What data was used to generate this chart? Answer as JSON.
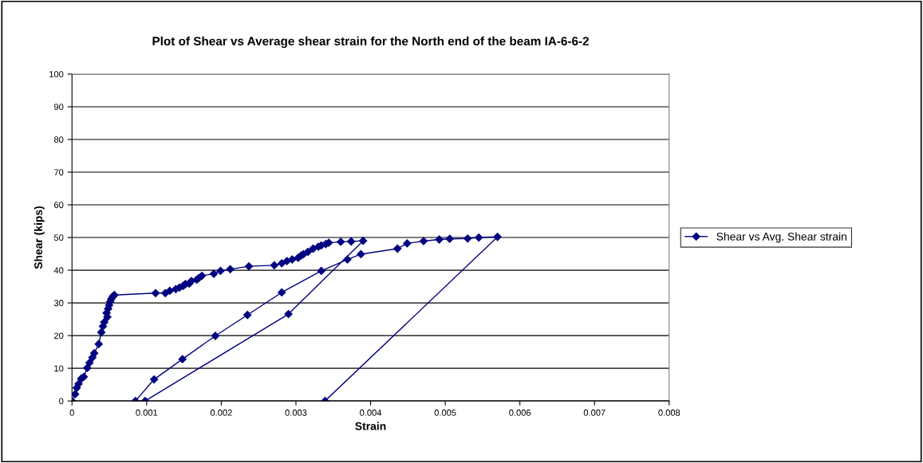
{
  "chart_data": {
    "type": "line",
    "title": "Plot of Shear vs Average shear strain for the North end of the beam IA-6-6-2",
    "xlabel": "Strain",
    "ylabel": "Shear (kips)",
    "xlim": [
      0,
      0.008
    ],
    "xticks": [
      0,
      0.001,
      0.002,
      0.003,
      0.004,
      0.005,
      0.006,
      0.007,
      0.008
    ],
    "ylim": [
      0,
      100
    ],
    "yticks": [
      0,
      10,
      20,
      30,
      40,
      50,
      60,
      70,
      80,
      90,
      100
    ],
    "grid": "y",
    "legend": "right",
    "marker": "diamond",
    "line_style": "solid",
    "series": [
      {
        "name": "Shear vs Avg. Shear strain",
        "color": "#000080",
        "x": [
          0,
          4.2e-05,
          6.3e-05,
          8.8e-05,
          0.000123,
          0.000158,
          0.000204,
          0.000235,
          0.000274,
          0.000298,
          0.000358,
          0.000393,
          0.000414,
          0.000432,
          0.000474,
          0.000463,
          0.000484,
          0.000498,
          0.000512,
          0.000526,
          0.000547,
          0.000568,
          0.00112,
          0.00125,
          0.00131,
          0.00139,
          0.00144,
          0.00149,
          0.00152,
          0.00157,
          0.0016,
          0.00167,
          0.0017,
          0.00174,
          0.0019,
          0.00199,
          0.00212,
          0.00237,
          0.00271,
          0.00281,
          0.00288,
          0.00295,
          0.00303,
          0.00307,
          0.0031,
          0.00316,
          0.00323,
          0.0033,
          0.00334,
          0.0034,
          0.00344,
          0.0036,
          0.00374,
          0.0039,
          0.0029,
          0.00098,
          0.00085,
          0.0011,
          0.00148,
          0.00192,
          0.00235,
          0.00281,
          0.00334,
          0.00369,
          0.00387,
          0.00436,
          0.00449,
          0.00471,
          0.00492,
          0.00506,
          0.0053,
          0.00545,
          0.0057,
          0.00339
        ],
        "values": [
          0,
          2.1,
          4.0,
          5.2,
          6.8,
          7.4,
          10.1,
          11.7,
          13.3,
          14.6,
          17.4,
          21.0,
          22.8,
          24.1,
          25.7,
          26.9,
          28.2,
          29.3,
          30.4,
          31.2,
          32.0,
          32.4,
          33.0,
          33.0,
          33.7,
          34.2,
          34.7,
          35.2,
          35.8,
          35.9,
          36.7,
          37.1,
          37.6,
          38.3,
          38.9,
          39.8,
          40.3,
          41.2,
          41.5,
          42.1,
          42.8,
          43.3,
          43.8,
          44.5,
          44.9,
          45.6,
          46.6,
          47.2,
          47.6,
          48.0,
          48.4,
          48.7,
          48.8,
          49.0,
          26.6,
          0,
          0,
          6.6,
          12.8,
          19.9,
          26.3,
          33.2,
          39.8,
          43.3,
          44.9,
          46.6,
          48.2,
          48.9,
          49.4,
          49.6,
          49.7,
          50.0,
          50.2,
          0
        ]
      }
    ]
  }
}
